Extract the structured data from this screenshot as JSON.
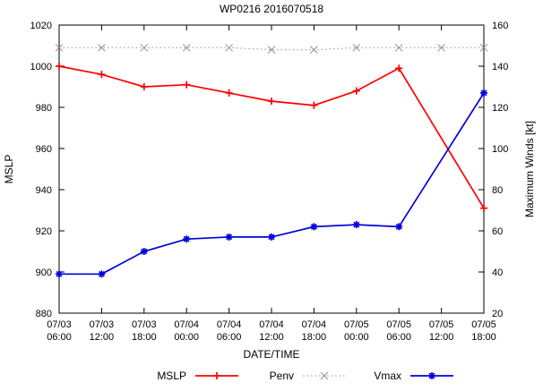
{
  "chart_data": {
    "type": "line",
    "title": "WP0216 2016070518",
    "xlabel": "DATE/TIME",
    "ylabel_left": "MSLP",
    "ylabel_right": "Maximum Winds [kt]",
    "ylim_left": [
      880,
      1020
    ],
    "ylim_right": [
      20,
      160
    ],
    "ytick_step": 20,
    "grid": false,
    "legend_position": "bottom",
    "categories": [
      "07/03 06:00",
      "07/03 12:00",
      "07/03 18:00",
      "07/04 00:00",
      "07/04 06:00",
      "07/04 12:00",
      "07/04 18:00",
      "07/05 00:00",
      "07/05 06:00",
      "07/05 12:00",
      "07/05 18:00"
    ],
    "series": [
      {
        "name": "MSLP",
        "axis": "left",
        "color": "#ff0000",
        "marker": "plus",
        "dash": "solid",
        "width": 1.7,
        "values": [
          1000,
          996,
          990,
          991,
          987,
          983,
          981,
          988,
          999,
          null,
          931
        ]
      },
      {
        "name": "Penv",
        "axis": "left",
        "color": "#909090",
        "marker": "cross",
        "dash": "dotted",
        "width": 1.0,
        "values": [
          1009,
          1009,
          1009,
          1009,
          1009,
          1008,
          1008,
          1009,
          1009,
          1009,
          1009
        ]
      },
      {
        "name": "Vmax",
        "axis": "right",
        "color": "#0000dd",
        "marker": "asterisk",
        "dash": "solid",
        "width": 1.7,
        "values": [
          39,
          39,
          50,
          56,
          57,
          57,
          62,
          63,
          62,
          null,
          127
        ]
      }
    ]
  }
}
